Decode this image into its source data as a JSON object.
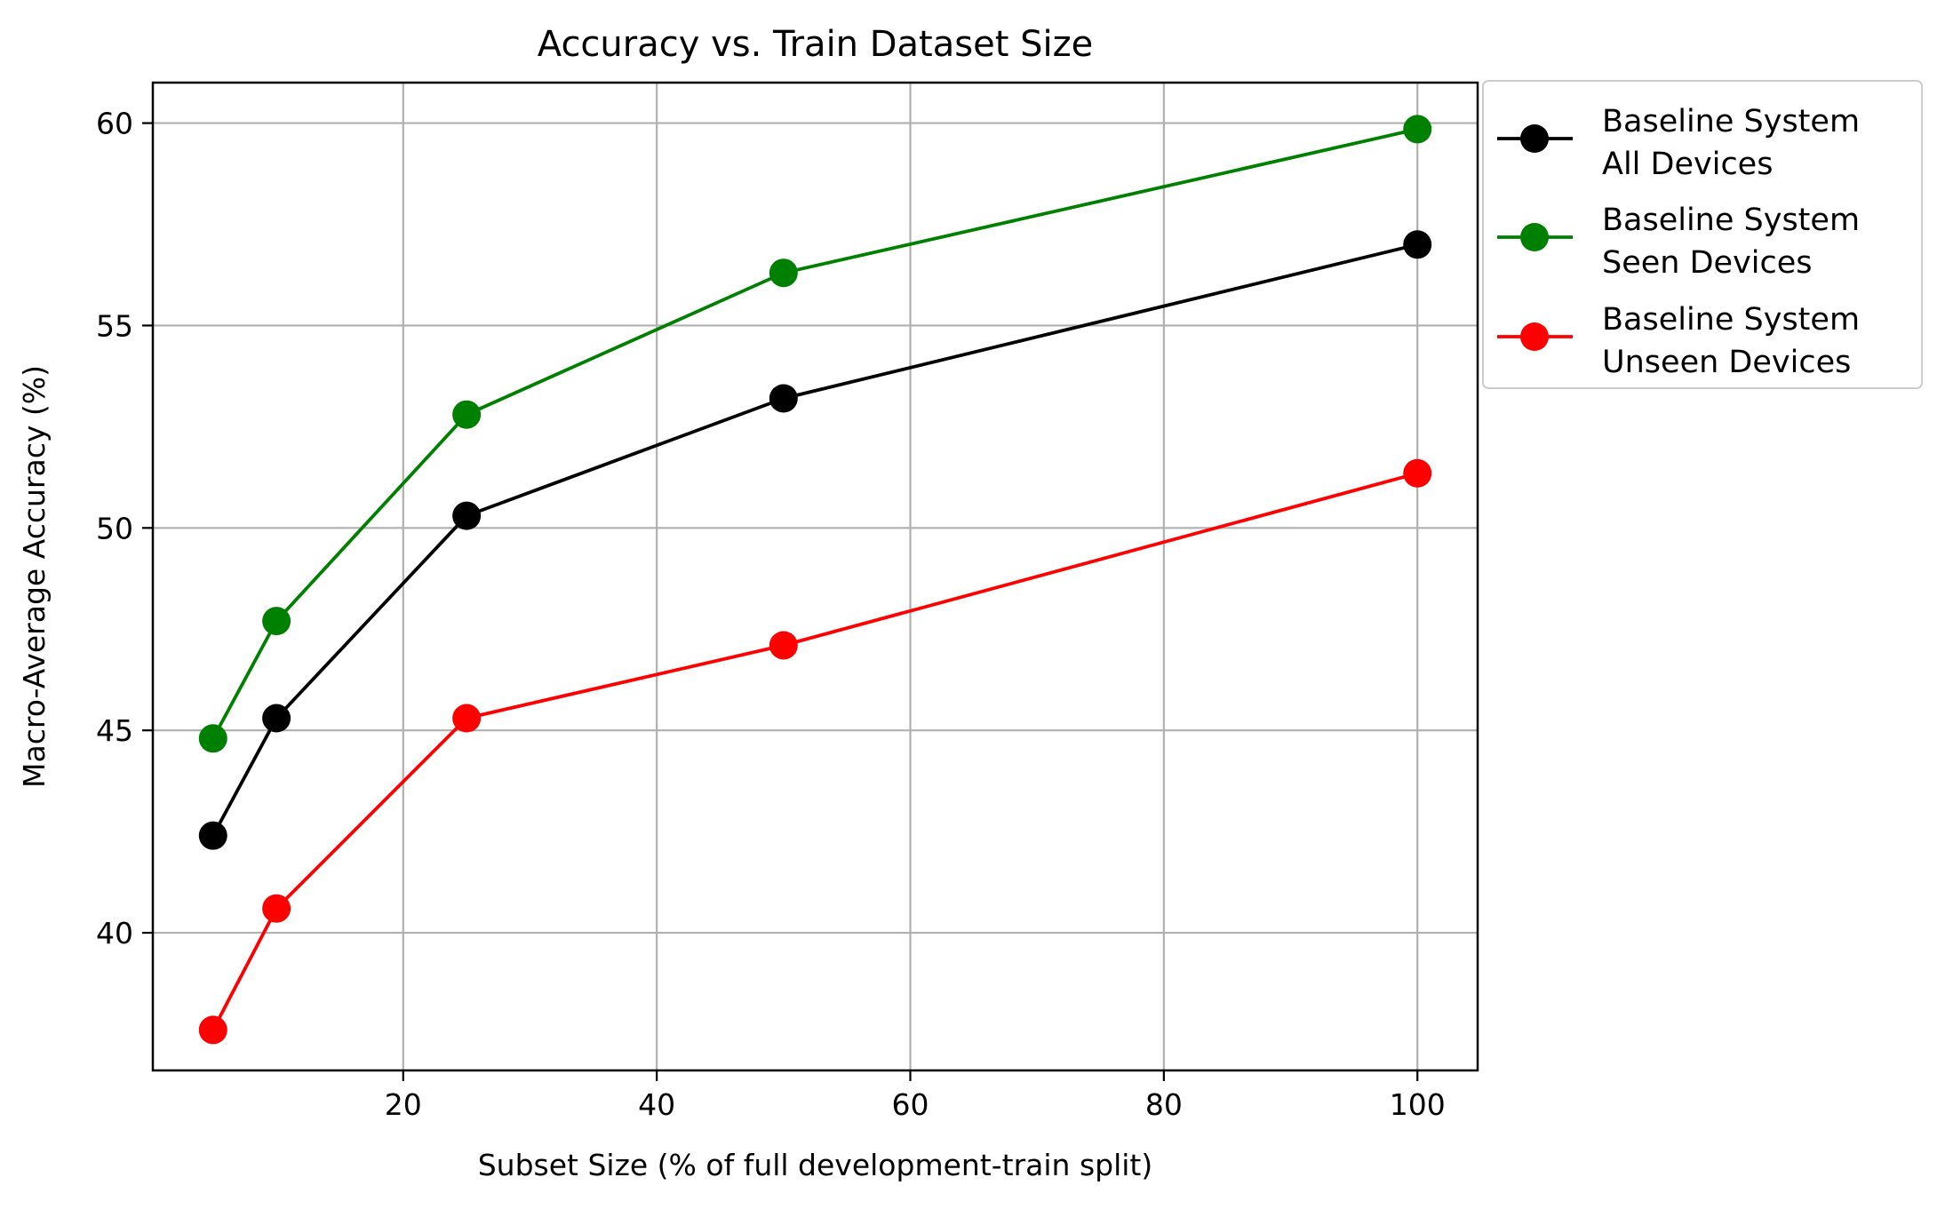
{
  "chart_data": {
    "type": "line",
    "title": "Accuracy vs. Train Dataset Size",
    "xlabel": "Subset Size (% of full development-train split)",
    "ylabel": "Macro-Average Accuracy (%)",
    "x": [
      5,
      10,
      25,
      50,
      100
    ],
    "xlim": [
      0.25,
      104.75
    ],
    "ylim": [
      36.6,
      61.0
    ],
    "xticks": [
      20,
      40,
      60,
      80,
      100
    ],
    "yticks": [
      40,
      45,
      50,
      55,
      60
    ],
    "grid": true,
    "legend_position": "outside-right",
    "series": [
      {
        "name_lines": [
          "Baseline System",
          "All Devices"
        ],
        "color": "#000000",
        "values": [
          42.4,
          45.3,
          50.3,
          53.2,
          57.0
        ]
      },
      {
        "name_lines": [
          "Baseline System",
          "Seen Devices"
        ],
        "color": "#008000",
        "values": [
          44.8,
          47.7,
          52.8,
          56.3,
          59.85
        ]
      },
      {
        "name_lines": [
          "Baseline System",
          "Unseen Devices"
        ],
        "color": "#ff0000",
        "values": [
          37.6,
          40.6,
          45.3,
          47.1,
          51.35
        ]
      }
    ]
  }
}
